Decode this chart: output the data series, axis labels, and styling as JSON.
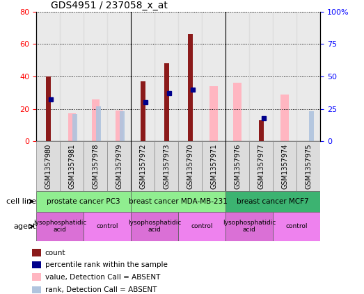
{
  "title": "GDS4951 / 237058_x_at",
  "samples": [
    "GSM1357980",
    "GSM1357981",
    "GSM1357978",
    "GSM1357979",
    "GSM1357972",
    "GSM1357973",
    "GSM1357970",
    "GSM1357971",
    "GSM1357976",
    "GSM1357977",
    "GSM1357974",
    "GSM1357975"
  ],
  "count": [
    40,
    null,
    null,
    null,
    37,
    48,
    66,
    null,
    null,
    13,
    null,
    null
  ],
  "percentile_rank": [
    32,
    null,
    null,
    null,
    30,
    37,
    40,
    null,
    null,
    18,
    null,
    null
  ],
  "value_absent": [
    null,
    17,
    26,
    19,
    null,
    null,
    null,
    34,
    36,
    null,
    29,
    null
  ],
  "rank_absent": [
    null,
    21,
    27,
    23,
    null,
    null,
    null,
    null,
    null,
    null,
    null,
    23
  ],
  "cell_line_groups": [
    {
      "label": "prostate cancer PC3",
      "start": 0,
      "end": 4,
      "color": "#90EE90"
    },
    {
      "label": "breast cancer MDA-MB-231",
      "start": 4,
      "end": 8,
      "color": "#90EE90"
    },
    {
      "label": "breast cancer MCF7",
      "start": 8,
      "end": 12,
      "color": "#3CB371"
    }
  ],
  "agent_groups": [
    {
      "label": "lysophosphatidic\nacid",
      "start": 0,
      "end": 2,
      "color": "#DA70D6"
    },
    {
      "label": "control",
      "start": 2,
      "end": 4,
      "color": "#EE82EE"
    },
    {
      "label": "lysophosphatidic\nacid",
      "start": 4,
      "end": 6,
      "color": "#DA70D6"
    },
    {
      "label": "control",
      "start": 6,
      "end": 8,
      "color": "#EE82EE"
    },
    {
      "label": "lysophosphatidic\nacid",
      "start": 8,
      "end": 10,
      "color": "#DA70D6"
    },
    {
      "label": "control",
      "start": 10,
      "end": 12,
      "color": "#EE82EE"
    }
  ],
  "ylim_left": [
    0,
    80
  ],
  "ylim_right": [
    0,
    100
  ],
  "yticks_left": [
    0,
    20,
    40,
    60,
    80
  ],
  "yticks_right": [
    0,
    25,
    50,
    75,
    100
  ],
  "yticklabels_right": [
    "0",
    "25",
    "50",
    "75",
    "100%"
  ],
  "color_count": "#8B1A1A",
  "color_percentile": "#00008B",
  "color_value_absent": "#FFB6C1",
  "color_rank_absent": "#B0C4DE",
  "bar_width": 0.4,
  "background_color": "#DCDCDC",
  "grid_color": "#000000"
}
